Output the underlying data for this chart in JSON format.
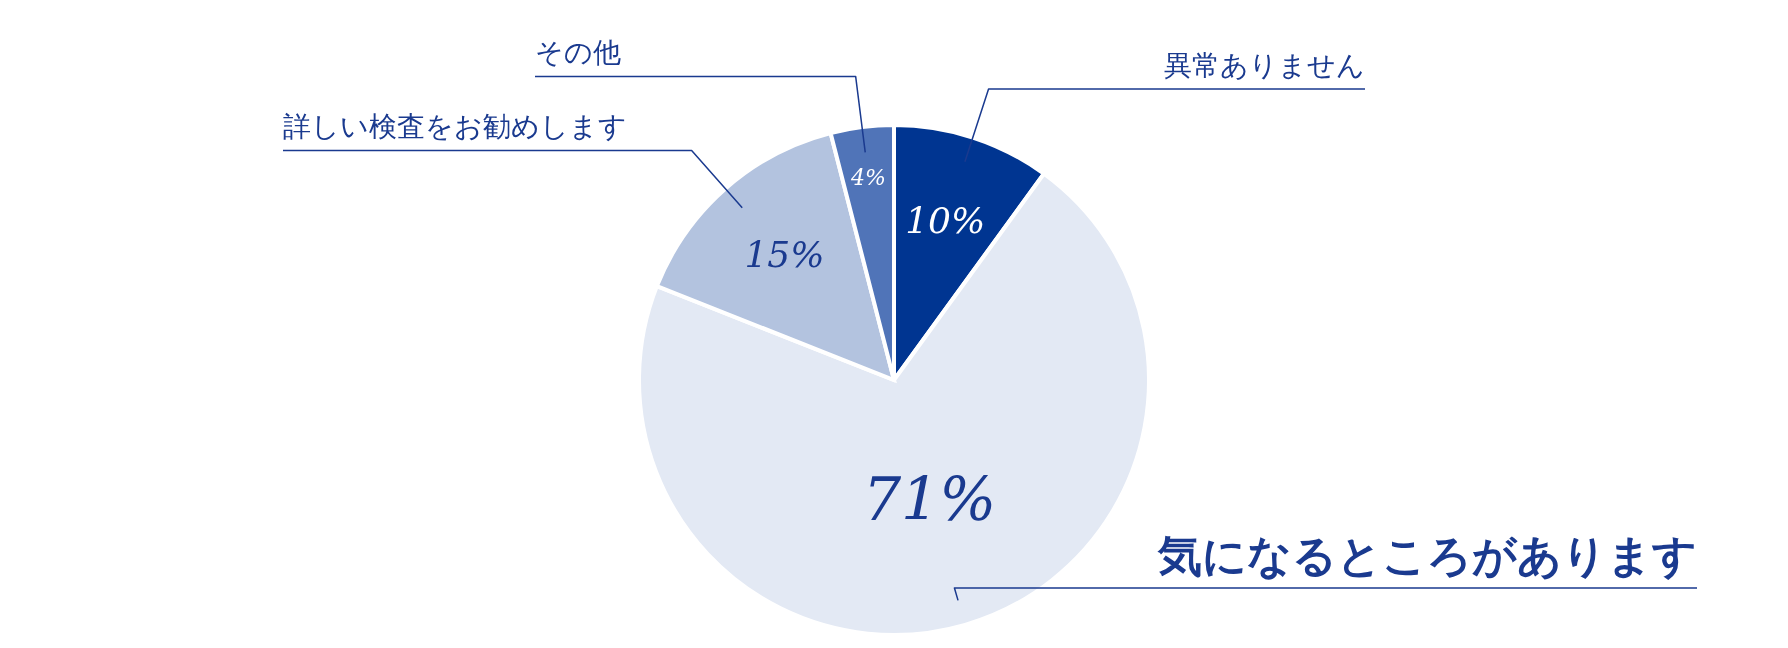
{
  "chart_data": {
    "type": "pie",
    "categories": [
      "異常ありません",
      "気になるところがあります",
      "詳しい検査をお勧めします",
      "その他"
    ],
    "values": [
      10,
      71,
      15,
      4
    ],
    "colors": [
      "#003591",
      "#e3e9f4",
      "#b3c3df",
      "#5074b8"
    ],
    "value_labels": [
      "10%",
      "71%",
      "15%",
      "4%"
    ]
  }
}
